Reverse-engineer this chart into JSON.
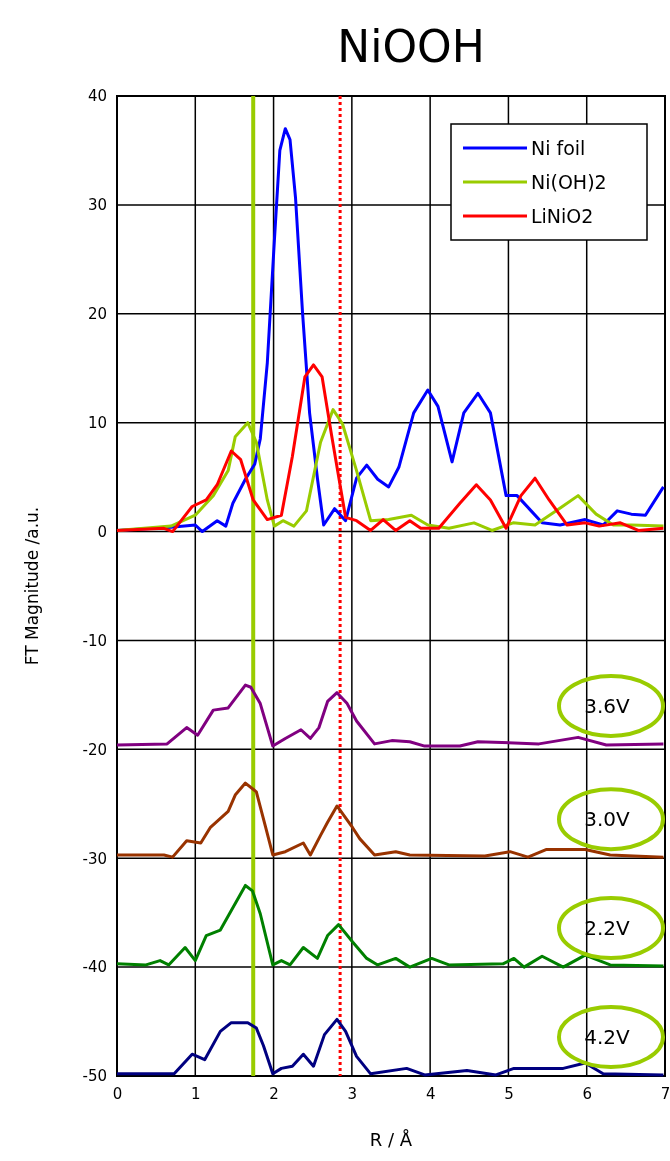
{
  "chart_data": {
    "type": "line",
    "title": "NiOOH",
    "xlabel": "R / Å",
    "ylabel": "FT Magnitude /a.u.",
    "xlim": [
      0,
      7
    ],
    "xticks": [
      0,
      1,
      2,
      3,
      4,
      5,
      6,
      7
    ],
    "ylim": [
      -50,
      40
    ],
    "yticks": [
      -50,
      -40,
      -30,
      -20,
      -10,
      0,
      10,
      20,
      30,
      40
    ],
    "grid": true,
    "legend": "top right",
    "line_style": "solid",
    "marker": "none",
    "series": [
      {
        "name": "Ni foil",
        "color": "#0000ff",
        "x": [
          0,
          0.69,
          1.0,
          1.09,
          1.28,
          1.39,
          1.48,
          1.64,
          1.76,
          1.83,
          1.92,
          2.01,
          2.08,
          2.15,
          2.21,
          2.28,
          2.37,
          2.46,
          2.56,
          2.64,
          2.78,
          2.92,
          3.06,
          3.19,
          3.33,
          3.47,
          3.6,
          3.79,
          3.97,
          4.1,
          4.28,
          4.43,
          4.61,
          4.77,
          4.97,
          5.11,
          5.29,
          5.43,
          5.66,
          5.98,
          6.21,
          6.39,
          6.57,
          6.75,
          6.98
        ],
        "values": [
          0.1,
          0.4,
          0.6,
          0,
          1.0,
          0.5,
          2.6,
          4.8,
          6.2,
          8.5,
          15.5,
          26.7,
          35,
          37,
          36,
          30.7,
          20.1,
          10.9,
          4.9,
          0.6,
          2.1,
          1.0,
          4.9,
          6.1,
          4.8,
          4.1,
          5.9,
          10.9,
          13,
          11.5,
          6.4,
          10.9,
          12.7,
          10.9,
          3.3,
          3.3,
          1.9,
          0.8,
          0.6,
          1.1,
          0.6,
          1.9,
          1.6,
          1.5,
          4.1
        ]
      },
      {
        "name": "Ni(OH)2",
        "color": "#99cc00",
        "x": [
          0,
          0.69,
          1.0,
          1.23,
          1.42,
          1.51,
          1.67,
          1.78,
          1.92,
          2.01,
          2.12,
          2.26,
          2.42,
          2.6,
          2.76,
          2.88,
          3.06,
          3.24,
          3.47,
          3.76,
          3.97,
          4.24,
          4.56,
          4.79,
          5.06,
          5.34,
          5.61,
          5.89,
          6.12,
          6.34,
          6.57,
          6.98
        ],
        "values": [
          0.1,
          0.5,
          1.5,
          3.3,
          5.6,
          8.7,
          10,
          8.2,
          2.9,
          0.5,
          1.0,
          0.5,
          1.9,
          8.2,
          11.2,
          9.9,
          5.6,
          1.0,
          1.1,
          1.5,
          0.6,
          0.3,
          0.8,
          0.1,
          0.8,
          0.6,
          1.9,
          3.3,
          1.6,
          0.6,
          0.6,
          0.5
        ]
      },
      {
        "name": "LiNiO2",
        "color": "#ff0000",
        "x": [
          0,
          0.6,
          0.71,
          0.96,
          1.14,
          1.28,
          1.46,
          1.58,
          1.74,
          1.92,
          2.1,
          2.24,
          2.4,
          2.51,
          2.62,
          2.74,
          2.92,
          3.06,
          3.24,
          3.4,
          3.56,
          3.74,
          3.88,
          4.11,
          4.38,
          4.59,
          4.77,
          4.97,
          5.16,
          5.34,
          5.52,
          5.75,
          5.98,
          6.16,
          6.43,
          6.66,
          6.98
        ],
        "values": [
          0.1,
          0.3,
          0,
          2.3,
          2.9,
          4.3,
          7.4,
          6.6,
          2.9,
          1.1,
          1.5,
          6.9,
          14.2,
          15.3,
          14.2,
          8.9,
          1.3,
          1.0,
          0.1,
          1.1,
          0.1,
          1.0,
          0.3,
          0.3,
          2.6,
          4.3,
          2.9,
          0.3,
          3.3,
          4.9,
          2.9,
          0.6,
          0.8,
          0.5,
          0.8,
          0.1,
          0.3
        ]
      },
      {
        "name": "3.6V",
        "color": "#800080",
        "x": [
          0,
          0.64,
          0.89,
          1.03,
          1.23,
          1.42,
          1.64,
          1.71,
          1.83,
          1.99,
          2.15,
          2.35,
          2.47,
          2.58,
          2.69,
          2.81,
          2.94,
          3.06,
          3.29,
          3.51,
          3.74,
          3.93,
          4.38,
          4.61,
          5.39,
          5.89,
          6.25,
          6.98
        ],
        "values": [
          -19.6,
          -19.5,
          -18.0,
          -18.7,
          -16.4,
          -16.2,
          -14.1,
          -14.3,
          -15.8,
          -19.7,
          -19.0,
          -18.2,
          -19.0,
          -18.0,
          -15.6,
          -14.8,
          -15.8,
          -17.4,
          -19.5,
          -19.2,
          -19.3,
          -19.7,
          -19.7,
          -19.3,
          -19.5,
          -18.9,
          -19.6,
          -19.5
        ]
      },
      {
        "name": "3.0V",
        "color": "#993300",
        "x": [
          0,
          0.6,
          0.71,
          0.89,
          1.07,
          1.19,
          1.42,
          1.51,
          1.64,
          1.78,
          1.9,
          1.99,
          2.15,
          2.38,
          2.47,
          2.6,
          2.69,
          2.81,
          3.01,
          3.1,
          3.29,
          3.56,
          3.74,
          4.7,
          5.02,
          5.25,
          5.48,
          5.98,
          6.3,
          6.98
        ],
        "values": [
          -29.7,
          -29.7,
          -29.9,
          -28.4,
          -28.6,
          -27.2,
          -25.7,
          -24.2,
          -23.1,
          -23.9,
          -27.2,
          -29.7,
          -29.4,
          -28.6,
          -29.7,
          -27.9,
          -26.7,
          -25.2,
          -27.2,
          -28.2,
          -29.7,
          -29.4,
          -29.7,
          -29.8,
          -29.4,
          -29.9,
          -29.2,
          -29.2,
          -29.7,
          -29.9
        ]
      },
      {
        "name": "2.2V",
        "color": "#008000",
        "x": [
          0,
          0.37,
          0.55,
          0.66,
          0.87,
          1.0,
          1.14,
          1.32,
          1.46,
          1.64,
          1.73,
          1.83,
          1.99,
          2.1,
          2.21,
          2.38,
          2.56,
          2.69,
          2.83,
          3.01,
          3.19,
          3.33,
          3.56,
          3.74,
          4.02,
          4.24,
          4.93,
          5.07,
          5.2,
          5.43,
          5.7,
          5.98,
          6.3,
          6.98
        ],
        "values": [
          -39.7,
          -39.8,
          -39.4,
          -39.8,
          -38.2,
          -39.4,
          -37.1,
          -36.6,
          -34.8,
          -32.5,
          -33.0,
          -35.1,
          -39.8,
          -39.4,
          -39.8,
          -38.2,
          -39.2,
          -37.1,
          -36.1,
          -37.7,
          -39.2,
          -39.8,
          -39.2,
          -40,
          -39.2,
          -39.8,
          -39.7,
          -39.2,
          -40,
          -39.0,
          -40,
          -38.9,
          -39.8,
          -39.9
        ]
      },
      {
        "name": "4.2V",
        "color": "#000080",
        "x": [
          0,
          0.73,
          0.96,
          1.12,
          1.32,
          1.46,
          1.67,
          1.78,
          1.87,
          1.99,
          2.1,
          2.24,
          2.38,
          2.51,
          2.65,
          2.81,
          2.92,
          3.06,
          3.24,
          3.7,
          3.93,
          4.47,
          4.84,
          5.07,
          5.7,
          5.98,
          6.21,
          6.98
        ],
        "values": [
          -49.8,
          -49.8,
          -48.0,
          -48.5,
          -45.9,
          -45.1,
          -45.1,
          -45.6,
          -47.2,
          -49.8,
          -49.3,
          -49.1,
          -48.0,
          -49.1,
          -46.2,
          -44.8,
          -45.9,
          -48.2,
          -49.8,
          -49.3,
          -49.9,
          -49.5,
          -49.9,
          -49.3,
          -49.3,
          -48.8,
          -49.8,
          -49.9
        ]
      }
    ],
    "ref_lines": [
      {
        "axis": "x",
        "value": 1.74,
        "color": "#99cc00",
        "line_style": "solid"
      },
      {
        "axis": "x",
        "value": 2.85,
        "color": "#ff0000",
        "line_style": "dotted"
      }
    ]
  }
}
